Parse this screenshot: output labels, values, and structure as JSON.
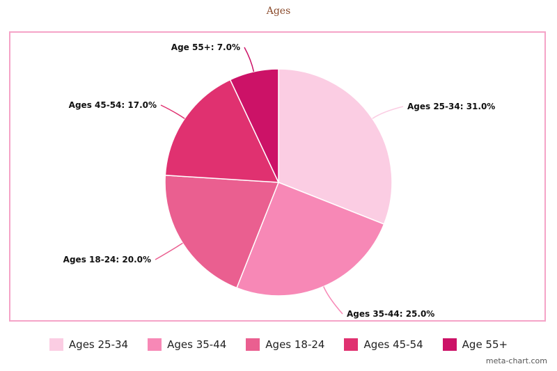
{
  "chart_data": {
    "type": "pie",
    "title": "Ages",
    "categories": [
      "Ages 25-34",
      "Ages 35-44",
      "Ages 18-24",
      "Ages 45-54",
      "Age 55+"
    ],
    "values": [
      31.0,
      25.0,
      20.0,
      17.0,
      7.0
    ],
    "value_labels": [
      "Ages 25-34: 31.0%",
      "Ages 35-44: 25.0%",
      "Ages 18-24: 20.0%",
      "Ages 45-54: 17.0%",
      "Age 55+: 7.0%"
    ],
    "colors": [
      "#fbcde3",
      "#f788b6",
      "#ea5f90",
      "#e03170",
      "#cc1267"
    ],
    "legend_position": "bottom"
  },
  "credit": "meta-chart.com"
}
